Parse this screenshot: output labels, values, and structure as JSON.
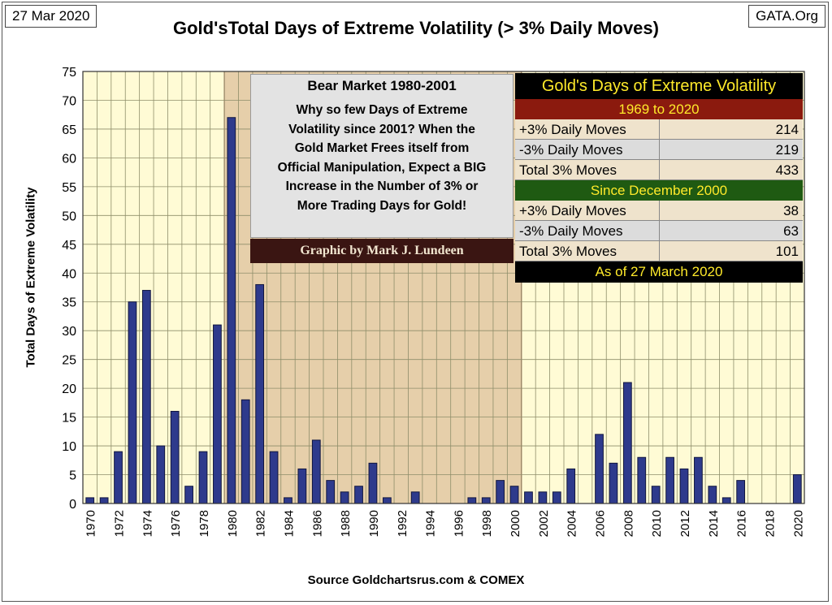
{
  "header": {
    "date": "27 Mar 2020",
    "site": "GATA.Org",
    "title": "Gold'sTotal Days of Extreme Volatility (> 3% Daily Moves)",
    "source": "Source Goldchartsrus.com & COMEX"
  },
  "note": {
    "title": "Bear Market 1980-2001",
    "lines": [
      "Why so few Days of Extreme",
      "Volatility since 2001?  When the",
      "Gold Market Frees itself from",
      "Official Manipulation, Expect a BIG",
      "Increase in the Number of 3% or",
      "More Trading Days for Gold!"
    ],
    "credit": "Graphic by Mark J. Lundeen"
  },
  "table": {
    "title": "Gold's Days of Extreme Volatility",
    "section1": "1969 to 2020",
    "rows1": [
      {
        "label": "+3% Daily Moves",
        "value": "214"
      },
      {
        "label": "-3% Daily Moves",
        "value": "219"
      },
      {
        "label": "Total 3% Moves",
        "value": "433"
      }
    ],
    "section2": "Since December 2000",
    "rows2": [
      {
        "label": "+3% Daily Moves",
        "value": "38"
      },
      {
        "label": "-3% Daily Moves",
        "value": "63"
      },
      {
        "label": "Total 3% Moves",
        "value": "101"
      }
    ],
    "footer": "As of 27 March 2020"
  },
  "colors": {
    "plot_bg": "#fffbd5",
    "bear_shade": "#e6cfaa",
    "bar_fill": "#2e3a8c",
    "grid": "#8e8e6a",
    "section1_bg": "#8b1a0e",
    "section2_bg": "#1f5a12"
  },
  "chart_data": {
    "type": "bar",
    "ylabel": "Total Days of Extreme Volatility",
    "xlabel": "",
    "ylim": [
      0,
      75
    ],
    "yticks": [
      0,
      5,
      10,
      15,
      20,
      25,
      30,
      35,
      40,
      45,
      50,
      55,
      60,
      65,
      70,
      75
    ],
    "x_tick_labels": [
      "1970",
      "1972",
      "1974",
      "1976",
      "1978",
      "1980",
      "1982",
      "1984",
      "1986",
      "1988",
      "1990",
      "1992",
      "1994",
      "1996",
      "1998",
      "2000",
      "2002",
      "2004",
      "2006",
      "2008",
      "2010",
      "2012",
      "2014",
      "2016",
      "2018",
      "2020"
    ],
    "categories": [
      1970,
      1971,
      1972,
      1973,
      1974,
      1975,
      1976,
      1977,
      1978,
      1979,
      1980,
      1981,
      1982,
      1983,
      1984,
      1985,
      1986,
      1987,
      1988,
      1989,
      1990,
      1991,
      1992,
      1993,
      1994,
      1995,
      1996,
      1997,
      1998,
      1999,
      2000,
      2001,
      2002,
      2003,
      2004,
      2005,
      2006,
      2007,
      2008,
      2009,
      2010,
      2011,
      2012,
      2013,
      2014,
      2015,
      2016,
      2017,
      2018,
      2019,
      2020
    ],
    "values": [
      1,
      1,
      9,
      35,
      37,
      10,
      16,
      3,
      9,
      31,
      67,
      18,
      38,
      9,
      1,
      6,
      11,
      4,
      2,
      3,
      7,
      1,
      0,
      2,
      0,
      0,
      0,
      1,
      1,
      4,
      3,
      2,
      2,
      2,
      6,
      0,
      12,
      7,
      21,
      8,
      3,
      8,
      6,
      8,
      3,
      1,
      4,
      0,
      0,
      0,
      5
    ],
    "shaded_range": [
      1980,
      2000
    ],
    "grid": true
  }
}
